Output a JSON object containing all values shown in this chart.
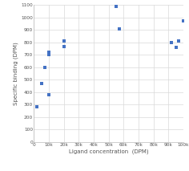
{
  "x_data": [
    2000,
    5000,
    7500,
    10000,
    10000,
    10000,
    20000,
    20000,
    55000,
    57000,
    92000,
    95000,
    97000,
    100000
  ],
  "y_data": [
    280,
    470,
    600,
    700,
    720,
    380,
    810,
    770,
    1090,
    910,
    800,
    760,
    810,
    975
  ],
  "xlabel": "Ligand concentration  (DPM)",
  "ylabel": "Specific binding (DPM)",
  "xlim": [
    0,
    100000
  ],
  "ylim": [
    0,
    1100
  ],
  "xticks": [
    0,
    10000,
    20000,
    30000,
    40000,
    50000,
    60000,
    70000,
    80000,
    90000,
    100000
  ],
  "yticks": [
    0,
    100,
    200,
    300,
    400,
    500,
    600,
    700,
    800,
    900,
    1000,
    1100
  ],
  "marker_color": "#4472c4",
  "marker": "s",
  "marker_size": 3,
  "grid_color": "#d9d9d9",
  "background_color": "#ffffff",
  "label_fontsize": 5.0,
  "tick_fontsize": 4.2,
  "spine_color": "#bbbbbb"
}
